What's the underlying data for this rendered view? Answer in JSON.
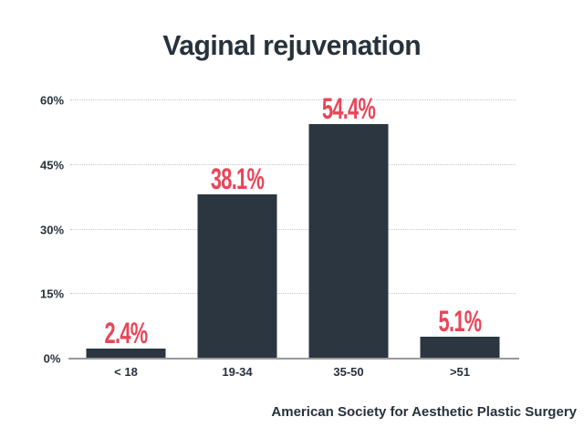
{
  "chart_data": {
    "type": "bar",
    "title": "Vaginal rejuvenation",
    "categories": [
      "< 18",
      "19-34",
      "35-50",
      ">51"
    ],
    "values": [
      2.4,
      38.1,
      54.4,
      5.1
    ],
    "value_labels": [
      "2.4%",
      "38.1%",
      "54.4%",
      "5.1%"
    ],
    "xlabel": "",
    "ylabel": "",
    "ylim": [
      0,
      60
    ],
    "yticks": [
      0,
      15,
      30,
      45,
      60
    ],
    "ytick_labels": [
      "0%",
      "15%",
      "30%",
      "45%",
      "60%"
    ],
    "grid": "horizontal-dotted",
    "legend": "none",
    "source": "American Society for Aesthetic Plastic Surgery",
    "colors": {
      "bar": "#2b3640",
      "value_label": "#e8465a",
      "text": "#28323c",
      "gridline": "#c6c6c6",
      "axis_line": "#9a9a9a",
      "background": "#ffffff"
    }
  }
}
